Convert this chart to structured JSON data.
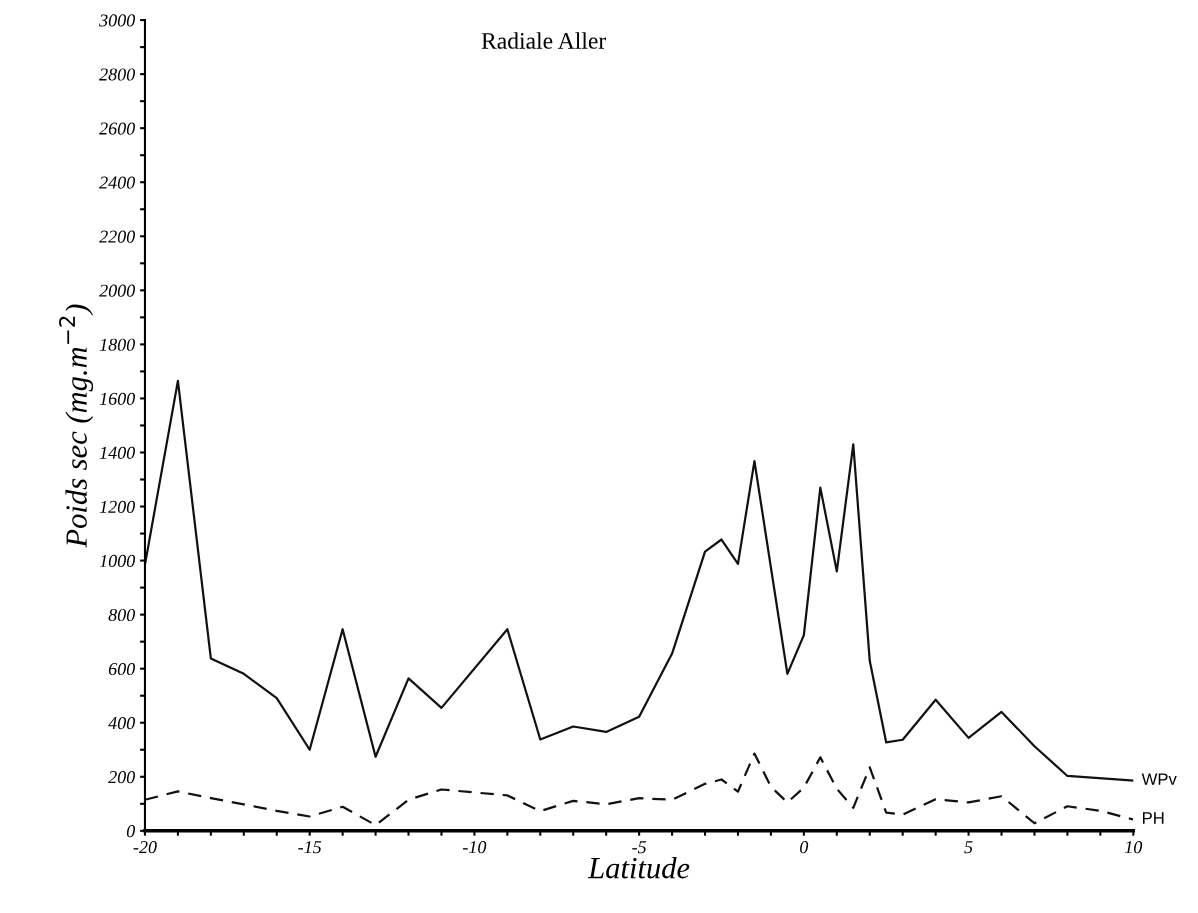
{
  "chart_data": {
    "type": "line",
    "title": "Radiale Aller",
    "xlabel": "Latitude",
    "ylabel": "Poids sec (mg.m$^{−2}$)",
    "xlim": [
      -20,
      10
    ],
    "ylim": [
      0,
      3000
    ],
    "xticks": [
      -20,
      {
        "value": -19,
        "label": null
      },
      {
        "value": -18,
        "label": null
      },
      {
        "value": -17,
        "label": null
      },
      {
        "value": -16,
        "label": null
      },
      -15,
      {
        "value": -14,
        "label": null
      },
      {
        "value": -13,
        "label": null
      },
      {
        "value": -12,
        "label": null
      },
      {
        "value": -11,
        "label": null
      },
      -10,
      {
        "value": -9,
        "label": null
      },
      {
        "value": -8,
        "label": null
      },
      {
        "value": -7,
        "label": null
      },
      {
        "value": -6,
        "label": null
      },
      -5,
      {
        "value": -4,
        "label": null
      },
      {
        "value": -3,
        "label": null
      },
      {
        "value": -2,
        "label": null
      },
      {
        "value": -1,
        "label": null
      },
      0,
      {
        "value": 1,
        "label": null
      },
      {
        "value": 2,
        "label": null
      },
      {
        "value": 3,
        "label": null
      },
      {
        "value": 4,
        "label": null
      },
      5,
      {
        "value": 6,
        "label": null
      },
      {
        "value": 7,
        "label": null
      },
      {
        "value": 8,
        "label": null
      },
      {
        "value": 9,
        "label": null
      },
      10
    ],
    "yticks": [
      0,
      {
        "value": 100,
        "label": null
      },
      200,
      {
        "value": 300,
        "label": null
      },
      400,
      {
        "value": 500,
        "label": null
      },
      600,
      {
        "value": 700,
        "label": null
      },
      800,
      {
        "value": 900,
        "label": null
      },
      1000,
      {
        "value": 1100,
        "label": null
      },
      1200,
      {
        "value": 1300,
        "label": null
      },
      1400,
      {
        "value": 1500,
        "label": null
      },
      1600,
      {
        "value": 1700,
        "label": null
      },
      1800,
      {
        "value": 1900,
        "label": null
      },
      2000,
      {
        "value": 2100,
        "label": null
      },
      2200,
      {
        "value": 2300,
        "label": null
      },
      2400,
      {
        "value": 2500,
        "label": null
      },
      2600,
      {
        "value": 2700,
        "label": null
      },
      2800,
      {
        "value": 2900,
        "label": null
      },
      3000
    ],
    "grid": false,
    "legend": false,
    "marker": "none",
    "series": [
      {
        "name": "WPv",
        "color": "#111111",
        "line_style": "solid",
        "x": [
          -20,
          -19,
          -18,
          -17,
          -16,
          -15,
          -14,
          -13,
          -12,
          -11,
          -9,
          -8,
          -7,
          -6,
          -5,
          -4,
          -3,
          -2.5,
          -2,
          -1.5,
          -0.5,
          0,
          0.5,
          1,
          1.5,
          2,
          2.5,
          3,
          4,
          5,
          6,
          7,
          8,
          10
        ],
        "values": [
          985,
          1665,
          638,
          581,
          491,
          300,
          746,
          274,
          564,
          455,
          746,
          338,
          386,
          366,
          422,
          656,
          1033,
          1078,
          988,
          1368,
          581,
          724,
          1270,
          960,
          1430,
          629,
          327,
          337,
          485,
          344,
          440,
          313,
          203,
          186
        ]
      },
      {
        "name": "PH",
        "color": "#111111",
        "line_style": "dashed",
        "x": [
          -20,
          -19,
          -18,
          -17,
          -16,
          -15,
          -14,
          -13,
          -12,
          -11,
          -9,
          -8,
          -7,
          -6,
          -5,
          -4,
          -3,
          -2.5,
          -2,
          -1.5,
          -1,
          -0.5,
          0,
          0.5,
          1,
          1.5,
          2,
          2.5,
          3,
          4,
          5,
          6,
          7,
          8,
          9,
          10
        ],
        "values": [
          115,
          146,
          121,
          98,
          74,
          53,
          89,
          21,
          115,
          153,
          131,
          73,
          111,
          98,
          121,
          115,
          174,
          190,
          145,
          286,
          163,
          105,
          160,
          272,
          156,
          85,
          235,
          67,
          60,
          117,
          105,
          128,
          28,
          91,
          74,
          42
        ]
      }
    ]
  }
}
